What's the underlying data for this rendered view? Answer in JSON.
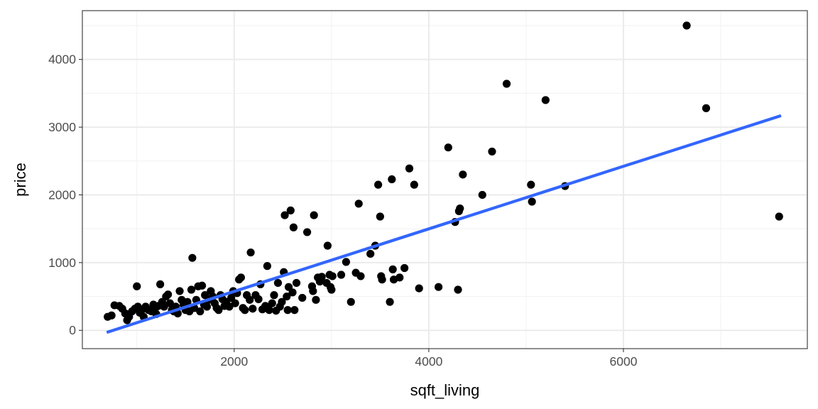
{
  "chart_data": {
    "type": "scatter",
    "title": "",
    "xlabel": "sqft_living",
    "ylabel": "price",
    "xlim": [
      440,
      7890
    ],
    "ylim": [
      -270,
      4720
    ],
    "x_ticks": [
      2000,
      4000,
      6000
    ],
    "x_tick_labels": [
      "2000",
      "4000",
      "6000"
    ],
    "y_ticks": [
      0,
      1000,
      2000,
      3000,
      4000
    ],
    "y_tick_labels": [
      "0",
      "1000",
      "2000",
      "3000",
      "4000"
    ],
    "grid": true,
    "legend": "none",
    "colors": {
      "points": "#000000",
      "fit_line": "#3366ff",
      "grid_major": "#ebebeb",
      "grid_minor": "#f2f2f2",
      "panel_border": "#333333"
    },
    "series": [
      {
        "type": "scatter",
        "points": [
          [
            700,
            200
          ],
          [
            740,
            220
          ],
          [
            770,
            370
          ],
          [
            820,
            360
          ],
          [
            850,
            320
          ],
          [
            880,
            250
          ],
          [
            900,
            150
          ],
          [
            920,
            200
          ],
          [
            950,
            280
          ],
          [
            980,
            320
          ],
          [
            1000,
            650
          ],
          [
            1010,
            350
          ],
          [
            1030,
            260
          ],
          [
            1050,
            300
          ],
          [
            1070,
            200
          ],
          [
            1090,
            350
          ],
          [
            1120,
            300
          ],
          [
            1150,
            280
          ],
          [
            1170,
            380
          ],
          [
            1190,
            330
          ],
          [
            1200,
            240
          ],
          [
            1220,
            360
          ],
          [
            1240,
            680
          ],
          [
            1260,
            420
          ],
          [
            1280,
            350
          ],
          [
            1300,
            500
          ],
          [
            1320,
            530
          ],
          [
            1340,
            400
          ],
          [
            1360,
            300
          ],
          [
            1380,
            280
          ],
          [
            1400,
            350
          ],
          [
            1420,
            250
          ],
          [
            1440,
            580
          ],
          [
            1460,
            450
          ],
          [
            1480,
            380
          ],
          [
            1500,
            300
          ],
          [
            1520,
            420
          ],
          [
            1540,
            280
          ],
          [
            1560,
            600
          ],
          [
            1570,
            1070
          ],
          [
            1590,
            330
          ],
          [
            1610,
            450
          ],
          [
            1630,
            650
          ],
          [
            1650,
            280
          ],
          [
            1670,
            660
          ],
          [
            1690,
            380
          ],
          [
            1700,
            520
          ],
          [
            1720,
            350
          ],
          [
            1740,
            450
          ],
          [
            1760,
            580
          ],
          [
            1780,
            500
          ],
          [
            1800,
            400
          ],
          [
            1820,
            330
          ],
          [
            1840,
            300
          ],
          [
            1860,
            520
          ],
          [
            1880,
            460
          ],
          [
            1900,
            360
          ],
          [
            1920,
            420
          ],
          [
            1950,
            350
          ],
          [
            1970,
            480
          ],
          [
            1990,
            580
          ],
          [
            2010,
            400
          ],
          [
            2030,
            550
          ],
          [
            2050,
            750
          ],
          [
            2070,
            780
          ],
          [
            2090,
            330
          ],
          [
            2110,
            300
          ],
          [
            2130,
            520
          ],
          [
            2160,
            450
          ],
          [
            2170,
            1150
          ],
          [
            2190,
            320
          ],
          [
            2220,
            520
          ],
          [
            2250,
            460
          ],
          [
            2270,
            680
          ],
          [
            2290,
            310
          ],
          [
            2320,
            360
          ],
          [
            2340,
            950
          ],
          [
            2360,
            300
          ],
          [
            2390,
            400
          ],
          [
            2410,
            520
          ],
          [
            2430,
            290
          ],
          [
            2450,
            700
          ],
          [
            2470,
            350
          ],
          [
            2490,
            420
          ],
          [
            2510,
            860
          ],
          [
            2520,
            1700
          ],
          [
            2540,
            500
          ],
          [
            2550,
            300
          ],
          [
            2560,
            640
          ],
          [
            2580,
            1770
          ],
          [
            2600,
            560
          ],
          [
            2610,
            1520
          ],
          [
            2620,
            300
          ],
          [
            2640,
            700
          ],
          [
            2700,
            480
          ],
          [
            2750,
            1450
          ],
          [
            2800,
            650
          ],
          [
            2810,
            580
          ],
          [
            2820,
            1700
          ],
          [
            2840,
            450
          ],
          [
            2860,
            780
          ],
          [
            2880,
            720
          ],
          [
            2900,
            790
          ],
          [
            2950,
            700
          ],
          [
            2960,
            1250
          ],
          [
            2980,
            820
          ],
          [
            2990,
            640
          ],
          [
            3000,
            600
          ],
          [
            3010,
            800
          ],
          [
            3100,
            820
          ],
          [
            3150,
            1010
          ],
          [
            3200,
            420
          ],
          [
            3250,
            850
          ],
          [
            3280,
            1870
          ],
          [
            3300,
            800
          ],
          [
            3400,
            1130
          ],
          [
            3450,
            1250
          ],
          [
            3480,
            2150
          ],
          [
            3500,
            1680
          ],
          [
            3510,
            800
          ],
          [
            3520,
            750
          ],
          [
            3600,
            420
          ],
          [
            3620,
            2230
          ],
          [
            3630,
            900
          ],
          [
            3640,
            750
          ],
          [
            3700,
            780
          ],
          [
            3750,
            920
          ],
          [
            3800,
            2390
          ],
          [
            3850,
            2150
          ],
          [
            3900,
            620
          ],
          [
            4100,
            640
          ],
          [
            4200,
            2700
          ],
          [
            4270,
            1600
          ],
          [
            4300,
            600
          ],
          [
            4310,
            1760
          ],
          [
            4320,
            1800
          ],
          [
            4350,
            2300
          ],
          [
            4550,
            2000
          ],
          [
            4650,
            2640
          ],
          [
            4800,
            3640
          ],
          [
            5050,
            2150
          ],
          [
            5060,
            1900
          ],
          [
            5200,
            3400
          ],
          [
            5400,
            2130
          ],
          [
            6650,
            4500
          ],
          [
            6850,
            3280
          ],
          [
            7600,
            1680
          ]
        ]
      },
      {
        "type": "line",
        "name": "",
        "points": [
          [
            690,
            -30
          ],
          [
            7620,
            3170
          ]
        ]
      }
    ]
  }
}
